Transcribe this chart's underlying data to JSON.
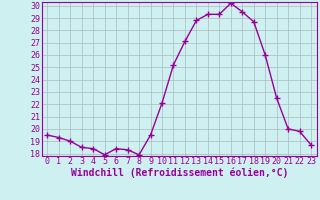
{
  "x": [
    0,
    1,
    2,
    3,
    4,
    5,
    6,
    7,
    8,
    9,
    10,
    11,
    12,
    13,
    14,
    15,
    16,
    17,
    18,
    19,
    20,
    21,
    22,
    23
  ],
  "y": [
    19.5,
    19.3,
    19.0,
    18.5,
    18.4,
    17.9,
    18.4,
    18.3,
    17.9,
    19.5,
    22.1,
    25.2,
    27.1,
    28.8,
    29.3,
    29.3,
    30.2,
    29.5,
    28.7,
    26.0,
    22.5,
    20.0,
    19.8,
    18.7
  ],
  "line_color": "#990099",
  "marker": "+",
  "markersize": 4,
  "linewidth": 1.0,
  "xlabel": "Windchill (Refroidissement éolien,°C)",
  "xlabel_fontsize": 7,
  "ylim_min": 18,
  "ylim_max": 30,
  "yticks": [
    18,
    19,
    20,
    21,
    22,
    23,
    24,
    25,
    26,
    27,
    28,
    29,
    30
  ],
  "xticks": [
    0,
    1,
    2,
    3,
    4,
    5,
    6,
    7,
    8,
    9,
    10,
    11,
    12,
    13,
    14,
    15,
    16,
    17,
    18,
    19,
    20,
    21,
    22,
    23
  ],
  "bg_color": "#cff0f0",
  "grid_color": "#aabbbb",
  "tick_color": "#990099",
  "tick_fontsize": 6,
  "axis_color": "#990099",
  "fig_width": 3.2,
  "fig_height": 2.0,
  "dpi": 100
}
